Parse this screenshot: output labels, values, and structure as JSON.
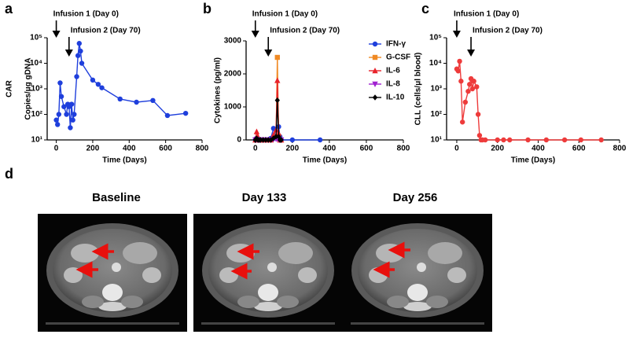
{
  "chart_data": [
    {
      "type": "line",
      "panel": "a",
      "ylabel": [
        "CAR",
        "Copies/μg gDNA"
      ],
      "xlabel": "Time (Days)",
      "yscale": "log",
      "xlim": [
        -50,
        800
      ],
      "xticks": [
        0,
        200,
        400,
        600,
        800
      ],
      "ylim": [
        10,
        100000
      ],
      "yticks": [
        {
          "value": 10,
          "label": "10¹"
        },
        {
          "value": 100,
          "label": "10²"
        },
        {
          "value": 1000,
          "label": "10³"
        },
        {
          "value": 10000,
          "label": "10⁴"
        },
        {
          "value": 100000,
          "label": "10⁵"
        }
      ],
      "annotations": [
        {
          "text": "Infusion 1 (Day 0)",
          "x": 0
        },
        {
          "text": "Infusion 2 (Day 70)",
          "x": 70
        }
      ],
      "x": [
        0,
        7,
        14,
        21,
        28,
        42,
        56,
        63,
        70,
        77,
        84,
        91,
        98,
        112,
        119,
        126,
        133,
        140,
        200,
        230,
        250,
        350,
        440,
        530,
        610,
        710
      ],
      "series": [
        {
          "name": "CAR",
          "color": "#1f3fdc",
          "marker": "circle",
          "values": [
            60,
            40,
            100,
            1700,
            500,
            200,
            100,
            250,
            200,
            30,
            250,
            60,
            100,
            3000,
            20000,
            60000,
            30000,
            10000,
            2200,
            1500,
            1100,
            400,
            300,
            350,
            90,
            110
          ]
        }
      ]
    },
    {
      "type": "line",
      "panel": "b",
      "ylabel": [
        "Cytokines (pg/ml)"
      ],
      "xlabel": "Time (Days)",
      "yscale": "linear",
      "xlim": [
        -50,
        800
      ],
      "xticks": [
        0,
        200,
        400,
        600,
        800
      ],
      "ylim": [
        0,
        3000
      ],
      "yticks": [
        0,
        1000,
        2000,
        3000
      ],
      "annotations": [
        {
          "text": "Infusion 1 (Day 0)",
          "x": 0
        },
        {
          "text": "Infusion 2 (Day 70)",
          "x": 70
        }
      ],
      "x": [
        0,
        7,
        14,
        21,
        28,
        42,
        56,
        70,
        84,
        98,
        112,
        119,
        126,
        133,
        140,
        200,
        350
      ],
      "series": [
        {
          "name": "IFN-γ",
          "color": "#1f3fdc",
          "marker": "circle",
          "values": [
            0,
            50,
            0,
            0,
            0,
            0,
            0,
            0,
            50,
            350,
            50,
            100,
            400,
            100,
            0,
            0,
            0
          ]
        },
        {
          "name": "G-CSF",
          "color": "#f08a24",
          "marker": "square",
          "values": [
            null,
            null,
            null,
            null,
            null,
            null,
            null,
            null,
            null,
            null,
            100,
            2500,
            100,
            0,
            null,
            null,
            null
          ]
        },
        {
          "name": "IL-6",
          "color": "#e8222a",
          "marker": "triangle",
          "values": [
            0,
            250,
            100,
            0,
            0,
            0,
            0,
            0,
            0,
            150,
            300,
            1800,
            200,
            0,
            0,
            null,
            null
          ]
        },
        {
          "name": "IL-8",
          "color": "#a020d0",
          "marker": "triangle-down",
          "values": [
            0,
            20,
            0,
            0,
            0,
            0,
            0,
            0,
            0,
            20,
            30,
            40,
            20,
            0,
            0,
            null,
            null
          ]
        },
        {
          "name": "IL-10",
          "color": "#000000",
          "marker": "diamond",
          "values": [
            0,
            50,
            0,
            0,
            0,
            0,
            0,
            0,
            0,
            50,
            100,
            1200,
            100,
            0,
            0,
            null,
            null
          ]
        }
      ]
    },
    {
      "type": "line",
      "panel": "c",
      "ylabel": [
        "CLL (cells/μl blood)"
      ],
      "xlabel": "Time (Days)",
      "yscale": "log",
      "xlim": [
        -50,
        800
      ],
      "xticks": [
        0,
        200,
        400,
        600,
        800
      ],
      "ylim": [
        10,
        100000
      ],
      "yticks": [
        {
          "value": 10,
          "label": "10¹"
        },
        {
          "value": 100,
          "label": "10²"
        },
        {
          "value": 1000,
          "label": "10³"
        },
        {
          "value": 10000,
          "label": "10⁴"
        },
        {
          "value": 100000,
          "label": "10⁵"
        }
      ],
      "annotations": [
        {
          "text": "Infusion 1 (Day 0)",
          "x": 0
        },
        {
          "text": "Infusion 2 (Day 70)",
          "x": 70
        }
      ],
      "x": [
        0,
        7,
        14,
        21,
        28,
        42,
        56,
        63,
        70,
        77,
        84,
        98,
        105,
        112,
        119,
        126,
        140,
        200,
        230,
        260,
        350,
        440,
        530,
        610,
        710
      ],
      "series": [
        {
          "name": "CLL",
          "color": "#ee3b3b",
          "marker": "circle",
          "values": [
            6000,
            5000,
            12000,
            2000,
            50,
            300,
            800,
            1500,
            2500,
            1000,
            2000,
            1200,
            100,
            15,
            10,
            10,
            10,
            10,
            10,
            10,
            10,
            10,
            10,
            10,
            10
          ]
        }
      ]
    }
  ],
  "images": {
    "panel": "d",
    "titles": [
      "Baseline",
      "Day 133",
      "Day 256"
    ]
  }
}
